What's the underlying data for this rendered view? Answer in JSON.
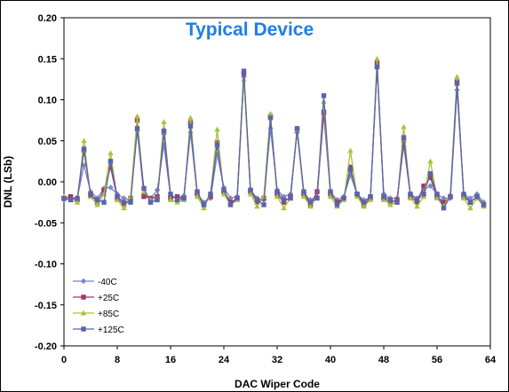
{
  "chart_data": {
    "type": "line",
    "title": "Typical Device",
    "xlabel": "DAC Wiper Code",
    "ylabel": "DNL (LSb)",
    "xlim": [
      0,
      64
    ],
    "ylim": [
      -0.2,
      0.2
    ],
    "xticks": [
      0,
      8,
      16,
      24,
      32,
      40,
      48,
      56,
      64
    ],
    "yticks": [
      -0.2,
      -0.15,
      -0.1,
      -0.05,
      0.0,
      0.05,
      0.1,
      0.15,
      0.2
    ],
    "xtick_labels": [
      "0",
      "8",
      "16",
      "24",
      "32",
      "40",
      "48",
      "56",
      "64"
    ],
    "ytick_labels": [
      "-0.20",
      "-0.15",
      "-0.10",
      "-0.05",
      "0.00",
      "0.05",
      "0.10",
      "0.15",
      "0.20"
    ],
    "grid": false,
    "legend_position": "bottom-left",
    "series": [
      {
        "name": "-40C",
        "color": "#7b87c6",
        "marker": "diamond",
        "values": [
          -0.022,
          -0.02,
          -0.02,
          0.02,
          -0.012,
          -0.02,
          -0.008,
          -0.007,
          -0.015,
          -0.02,
          -0.022,
          0.062,
          -0.015,
          -0.02,
          -0.01,
          0.045,
          -0.018,
          -0.02,
          -0.017,
          0.06,
          -0.015,
          -0.025,
          -0.02,
          0.033,
          -0.007,
          -0.02,
          -0.018,
          0.128,
          -0.01,
          -0.02,
          -0.022,
          0.065,
          -0.01,
          -0.018,
          -0.015,
          0.06,
          -0.015,
          -0.022,
          -0.018,
          0.082,
          -0.012,
          -0.022,
          -0.018,
          0.008,
          -0.015,
          -0.022,
          -0.02,
          0.14,
          -0.015,
          -0.02,
          -0.02,
          0.044,
          -0.015,
          -0.02,
          -0.01,
          -0.005,
          -0.015,
          -0.02,
          -0.02,
          0.112,
          -0.015,
          -0.02,
          -0.015,
          -0.025
        ]
      },
      {
        "name": "+25C",
        "color": "#a2386a",
        "marker": "square",
        "values": [
          -0.02,
          -0.018,
          -0.022,
          0.038,
          -0.015,
          -0.025,
          -0.01,
          0.018,
          -0.02,
          -0.028,
          -0.02,
          0.075,
          -0.018,
          -0.02,
          -0.018,
          0.06,
          -0.02,
          -0.018,
          -0.02,
          0.072,
          -0.015,
          -0.028,
          -0.018,
          0.048,
          -0.012,
          -0.025,
          -0.02,
          0.132,
          -0.012,
          -0.025,
          -0.02,
          0.08,
          -0.015,
          -0.025,
          -0.018,
          0.063,
          -0.015,
          -0.028,
          -0.012,
          0.085,
          -0.015,
          -0.025,
          -0.02,
          0.018,
          -0.015,
          -0.028,
          -0.02,
          0.145,
          -0.02,
          -0.025,
          -0.022,
          0.05,
          -0.018,
          -0.025,
          -0.005,
          0.005,
          -0.018,
          -0.025,
          -0.018,
          0.122,
          -0.018,
          -0.025,
          -0.018,
          -0.028
        ]
      },
      {
        "name": "+85C",
        "color": "#a6c43a",
        "marker": "triangle",
        "values": [
          -0.018,
          -0.022,
          -0.025,
          0.05,
          -0.018,
          -0.028,
          -0.015,
          0.035,
          -0.022,
          -0.032,
          -0.018,
          0.08,
          -0.012,
          -0.022,
          -0.02,
          0.073,
          -0.022,
          -0.025,
          -0.022,
          0.078,
          -0.018,
          -0.032,
          -0.015,
          0.064,
          -0.015,
          -0.028,
          -0.022,
          0.125,
          -0.015,
          -0.03,
          -0.018,
          0.083,
          -0.018,
          -0.032,
          -0.02,
          0.063,
          -0.018,
          -0.03,
          -0.018,
          0.098,
          -0.018,
          -0.03,
          -0.022,
          0.038,
          -0.018,
          -0.03,
          -0.022,
          0.15,
          -0.022,
          -0.028,
          -0.025,
          0.067,
          -0.02,
          -0.03,
          -0.018,
          0.025,
          -0.02,
          -0.03,
          -0.015,
          0.128,
          -0.02,
          -0.032,
          -0.02,
          -0.03
        ]
      },
      {
        "name": "+125C",
        "color": "#5b64ab",
        "marker": "square",
        "values": [
          -0.02,
          -0.022,
          -0.02,
          0.04,
          -0.016,
          -0.022,
          -0.025,
          0.025,
          -0.018,
          -0.025,
          -0.025,
          0.065,
          -0.008,
          -0.025,
          -0.022,
          0.062,
          -0.015,
          -0.022,
          -0.02,
          0.068,
          -0.012,
          -0.028,
          -0.015,
          0.045,
          -0.01,
          -0.028,
          -0.02,
          0.135,
          -0.01,
          -0.022,
          -0.028,
          0.078,
          -0.012,
          -0.022,
          -0.02,
          0.065,
          -0.012,
          -0.025,
          -0.02,
          0.105,
          -0.012,
          -0.028,
          -0.02,
          0.015,
          -0.015,
          -0.025,
          -0.018,
          0.14,
          -0.018,
          -0.022,
          -0.025,
          0.054,
          -0.015,
          -0.022,
          -0.015,
          0.01,
          -0.015,
          -0.032,
          -0.018,
          0.12,
          -0.015,
          -0.025,
          -0.018,
          -0.028
        ]
      }
    ]
  }
}
